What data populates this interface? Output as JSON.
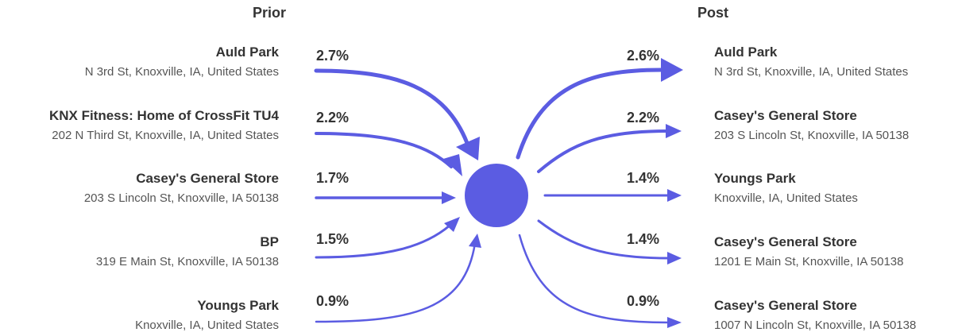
{
  "prior": {
    "header": "Prior",
    "places": [
      {
        "name": "Auld Park",
        "address": "N 3rd St, Knoxville, IA, United States",
        "percent": "2.7%"
      },
      {
        "name": "KNX Fitness: Home of CrossFit TU4",
        "address": "202 N Third St, Knoxville, IA, United States",
        "percent": "2.2%"
      },
      {
        "name": "Casey's General Store",
        "address": "203 S Lincoln St, Knoxville, IA 50138",
        "percent": "1.7%"
      },
      {
        "name": "BP",
        "address": "319 E Main St, Knoxville, IA 50138",
        "percent": "1.5%"
      },
      {
        "name": "Youngs Park",
        "address": "Knoxville, IA, United States",
        "percent": "0.9%"
      }
    ]
  },
  "post": {
    "header": "Post",
    "places": [
      {
        "name": "Auld Park",
        "address": "N 3rd St, Knoxville, IA, United States",
        "percent": "2.6%"
      },
      {
        "name": "Casey's General Store",
        "address": "203 S Lincoln St, Knoxville, IA 50138",
        "percent": "2.2%"
      },
      {
        "name": "Youngs Park",
        "address": "Knoxville, IA, United States",
        "percent": "1.4%"
      },
      {
        "name": "Casey's General Store",
        "address": "1201 E Main St, Knoxville, IA 50138",
        "percent": "1.4%"
      },
      {
        "name": "Casey's General Store",
        "address": "1007 N Lincoln St, Knoxville, IA 50138",
        "percent": "0.9%"
      }
    ]
  },
  "colors": {
    "flow": "#5b5ce2",
    "text": "#333333",
    "subtext": "#555555"
  }
}
